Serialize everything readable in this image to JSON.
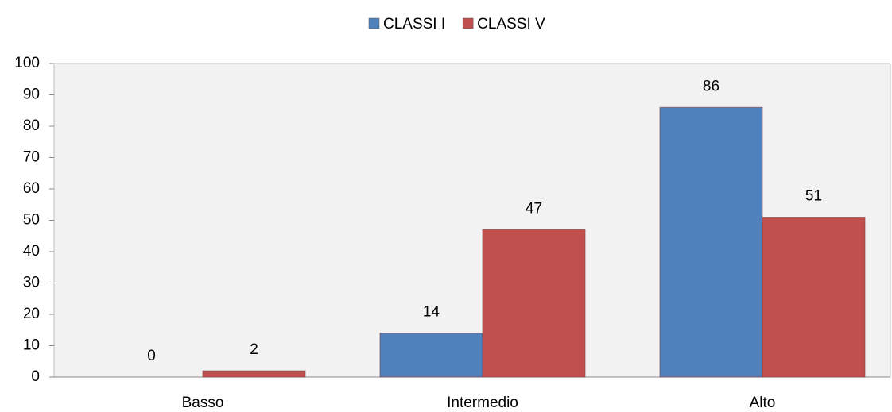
{
  "chart_data": {
    "type": "bar",
    "categories": [
      "Basso",
      "Intermedio",
      "Alto"
    ],
    "series": [
      {
        "name": "CLASSI I",
        "color": "#4f81bd",
        "values": [
          0,
          14,
          86
        ]
      },
      {
        "name": "CLASSI V",
        "color": "#c0504d",
        "values": [
          2,
          47,
          51
        ]
      }
    ],
    "ylim": [
      0,
      100
    ],
    "yticks": [
      0,
      10,
      20,
      30,
      40,
      50,
      60,
      70,
      80,
      90,
      100
    ],
    "legend": "top"
  }
}
